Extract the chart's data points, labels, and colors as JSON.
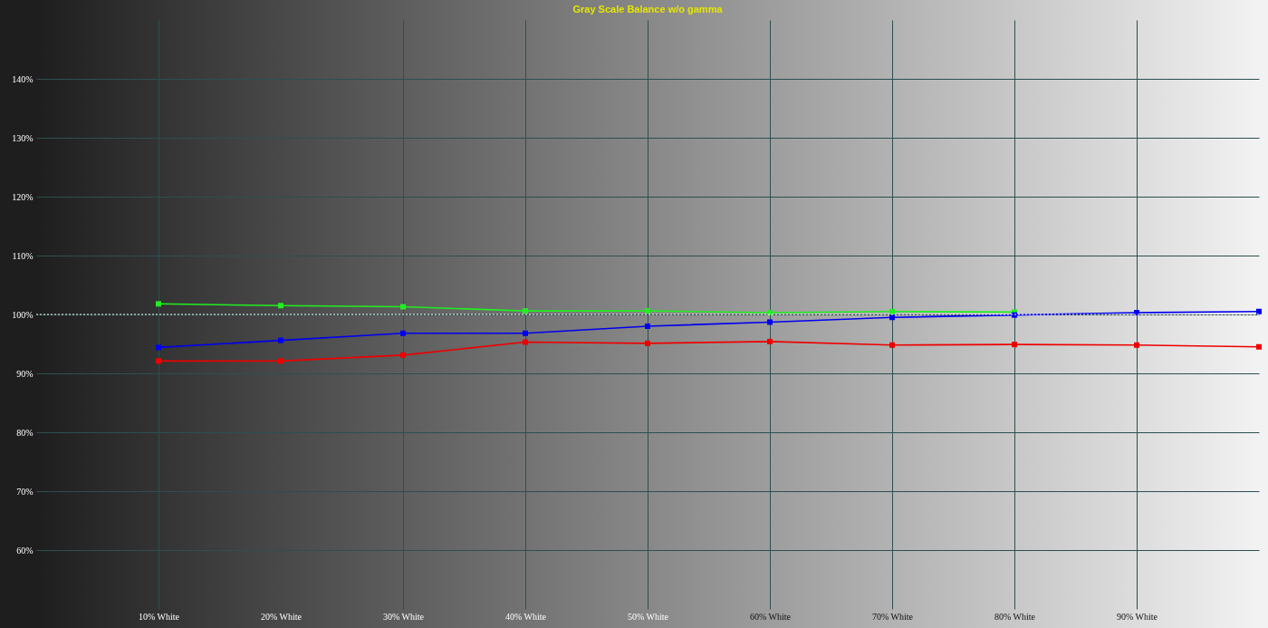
{
  "chart_data": {
    "type": "line",
    "title": "Gray Scale Balance w/o gamma",
    "x": [
      10,
      20,
      30,
      40,
      50,
      60,
      70,
      80,
      90,
      100
    ],
    "series": [
      {
        "color": "#22ee22",
        "values": [
          101.8,
          101.5,
          101.3,
          100.6,
          100.6,
          100.3,
          100.5,
          100.4,
          null,
          null
        ]
      },
      {
        "color": "#0000ee",
        "values": [
          94.4,
          95.6,
          96.8,
          96.8,
          98.0,
          98.7,
          99.5,
          99.9,
          100.3,
          100.5
        ]
      },
      {
        "color": "#ee0000",
        "values": [
          92.1,
          92.1,
          93.1,
          95.3,
          95.1,
          95.4,
          94.8,
          94.9,
          94.8,
          94.5
        ]
      }
    ],
    "xlim": [
      0,
      100
    ],
    "ylim": [
      50,
      150
    ],
    "xticks": [
      {
        "value": 10,
        "label": "10% White"
      },
      {
        "value": 20,
        "label": "20% White"
      },
      {
        "value": 30,
        "label": "30% White"
      },
      {
        "value": 40,
        "label": "40% White"
      },
      {
        "value": 50,
        "label": "50% White"
      },
      {
        "value": 60,
        "label": "60% White"
      },
      {
        "value": 70,
        "label": "70% White"
      },
      {
        "value": 80,
        "label": "80% White"
      },
      {
        "value": 90,
        "label": "90% White"
      }
    ],
    "yticks": [
      {
        "value": 60,
        "label": "60%"
      },
      {
        "value": 70,
        "label": "70%"
      },
      {
        "value": 80,
        "label": "80%"
      },
      {
        "value": 90,
        "label": "90%"
      },
      {
        "value": 100,
        "label": "100%"
      },
      {
        "value": 110,
        "label": "110%"
      },
      {
        "value": 120,
        "label": "120%"
      },
      {
        "value": 130,
        "label": "130%"
      },
      {
        "value": 140,
        "label": "140%"
      }
    ],
    "grid": true,
    "marker": "square",
    "line_style": "solid",
    "ref_lines": [
      {
        "axis": "y",
        "value": 100,
        "color": "#ffffff",
        "line_style": "dotted"
      }
    ]
  }
}
